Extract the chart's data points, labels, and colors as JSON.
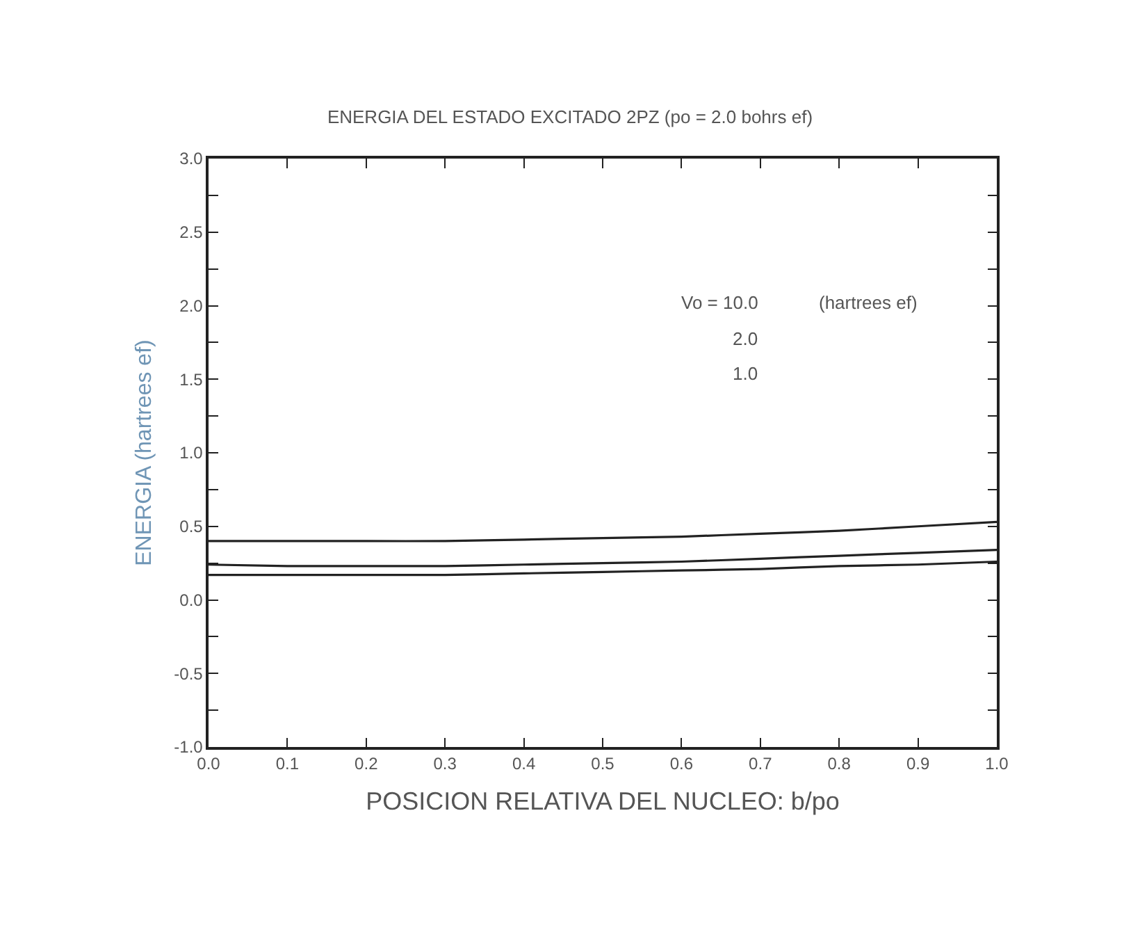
{
  "chart_data": {
    "type": "line",
    "title": "ENERGIA DEL ESTADO EXCITADO 2PZ (po = 2.0 bohrs ef)",
    "xlabel": "POSICION RELATIVA DEL NUCLEO: b/po",
    "ylabel": "ENERGIA (hartrees ef)",
    "x": [
      0.0,
      0.1,
      0.2,
      0.3,
      0.4,
      0.5,
      0.6,
      0.7,
      0.8,
      0.9,
      1.0
    ],
    "series": [
      {
        "color": "#222222",
        "values": [
          0.4,
          0.4,
          0.4,
          0.4,
          0.41,
          0.42,
          0.43,
          0.45,
          0.47,
          0.5,
          0.53
        ]
      },
      {
        "color": "#222222",
        "values": [
          0.24,
          0.23,
          0.23,
          0.23,
          0.24,
          0.25,
          0.26,
          0.28,
          0.3,
          0.32,
          0.34
        ]
      },
      {
        "color": "#222222",
        "values": [
          0.17,
          0.17,
          0.17,
          0.17,
          0.18,
          0.19,
          0.2,
          0.21,
          0.23,
          0.24,
          0.26
        ]
      }
    ],
    "annotations": [
      "Vo = 10.0",
      "(hartrees ef)",
      "2.0",
      "1.0"
    ],
    "xlim": [
      0.0,
      1.0
    ],
    "ylim": [
      -1.0,
      3.0
    ],
    "xticks": [
      {
        "value": 0.0,
        "label": "0.0"
      },
      {
        "value": 0.1,
        "label": "0.1"
      },
      {
        "value": 0.2,
        "label": "0.2"
      },
      {
        "value": 0.3,
        "label": "0.3"
      },
      {
        "value": 0.4,
        "label": "0.4"
      },
      {
        "value": 0.5,
        "label": "0.5"
      },
      {
        "value": 0.6,
        "label": "0.6"
      },
      {
        "value": 0.7,
        "label": "0.7"
      },
      {
        "value": 0.8,
        "label": "0.8"
      },
      {
        "value": 0.9,
        "label": "0.9"
      },
      {
        "value": 1.0,
        "label": "1.0"
      }
    ],
    "yticks": [
      {
        "value": -1.0,
        "label": "-1.0"
      },
      {
        "value": -0.75,
        "label": null
      },
      {
        "value": -0.5,
        "label": "-0.5"
      },
      {
        "value": -0.25,
        "label": null
      },
      {
        "value": 0.0,
        "label": "0.0"
      },
      {
        "value": 0.25,
        "label": null
      },
      {
        "value": 0.5,
        "label": "0.5"
      },
      {
        "value": 0.75,
        "label": null
      },
      {
        "value": 1.0,
        "label": "1.0"
      },
      {
        "value": 1.25,
        "label": null
      },
      {
        "value": 1.5,
        "label": "1.5"
      },
      {
        "value": 1.75,
        "label": null
      },
      {
        "value": 2.0,
        "label": "2.0"
      },
      {
        "value": 2.25,
        "label": null
      },
      {
        "value": 2.5,
        "label": "2.5"
      },
      {
        "value": 2.75,
        "label": null
      },
      {
        "value": 3.0,
        "label": "3.0"
      }
    ],
    "marker": "none",
    "line_style": "solid"
  }
}
